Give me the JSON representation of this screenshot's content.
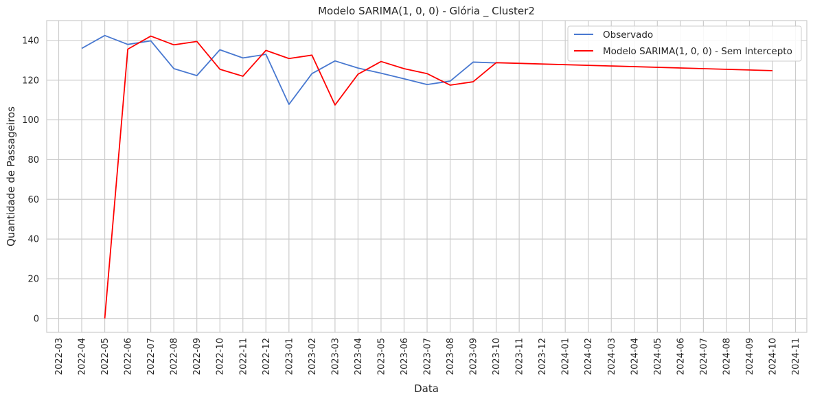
{
  "chart_data": {
    "type": "line",
    "title": "Modelo SARIMA(1, 0, 0) - Glória _ Cluster2",
    "xlabel": "Data",
    "ylabel": "Quantidade de Passageiros",
    "ylim": [
      -7,
      150
    ],
    "y_ticks": [
      0,
      20,
      40,
      60,
      80,
      100,
      120,
      140
    ],
    "x_ticks": [
      "2022-03",
      "2022-04",
      "2022-05",
      "2022-06",
      "2022-07",
      "2022-08",
      "2022-09",
      "2022-10",
      "2022-11",
      "2022-12",
      "2023-01",
      "2023-02",
      "2023-03",
      "2023-04",
      "2023-05",
      "2023-06",
      "2023-07",
      "2023-08",
      "2023-09",
      "2023-10",
      "2023-11",
      "2023-12",
      "2024-01",
      "2024-02",
      "2024-03",
      "2024-04",
      "2024-05",
      "2024-06",
      "2024-07",
      "2024-08",
      "2024-09",
      "2024-10",
      "2024-11"
    ],
    "grid": true,
    "legend_position": "top-right",
    "series": [
      {
        "name": "Observado",
        "color": "#4878d0",
        "x": [
          "2022-04",
          "2022-05",
          "2022-06",
          "2022-07",
          "2022-08",
          "2022-09",
          "2022-10",
          "2022-11",
          "2022-12",
          "2023-01",
          "2023-02",
          "2023-03",
          "2023-04",
          "2023-05",
          "2023-06",
          "2023-07",
          "2023-08",
          "2023-09",
          "2023-10"
        ],
        "values": [
          136,
          142.5,
          138,
          139.8,
          125.8,
          122.3,
          135.3,
          131.2,
          133,
          107.8,
          123.3,
          129.7,
          126.1,
          123.5,
          120.7,
          117.8,
          119.5,
          129.1,
          128.7
        ]
      },
      {
        "name": "Modelo SARIMA(1, 0, 0) - Sem Intercepto",
        "color": "#ff0000",
        "x": [
          "2022-05",
          "2022-06",
          "2022-07",
          "2022-08",
          "2022-09",
          "2022-10",
          "2022-11",
          "2022-12",
          "2023-01",
          "2023-02",
          "2023-03",
          "2023-04",
          "2023-05",
          "2023-06",
          "2023-07",
          "2023-08",
          "2023-09",
          "2023-10",
          "2024-10"
        ],
        "values": [
          0,
          135.6,
          142.2,
          137.8,
          139.5,
          125.5,
          122,
          135,
          130.9,
          132.6,
          107.5,
          123,
          129.4,
          125.8,
          123.3,
          117.5,
          119.2,
          128.8,
          124.8
        ]
      }
    ]
  }
}
